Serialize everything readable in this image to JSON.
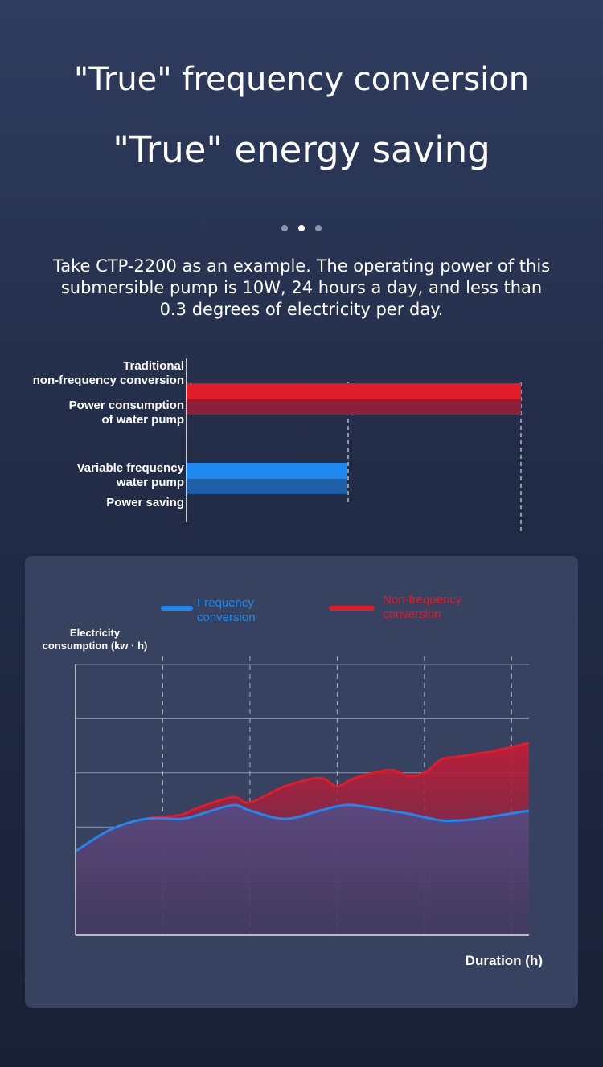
{
  "header": {
    "title_line1": "\"True\" frequency conversion",
    "title_line2": "\"True\" energy saving"
  },
  "pagination": {
    "count": 3,
    "active_index": 1
  },
  "description": "Take CTP-2200 as an example. The operating power of this submersible pump is 10W, 24 hours a day, and less than 0.3 degrees of electricity per day.",
  "colors": {
    "red": "#e01c28",
    "red_dark": "#8c1f3a",
    "blue": "#1e88f0",
    "blue_dark": "#1f5fa8"
  },
  "chart_data": [
    {
      "type": "bar",
      "orientation": "horizontal",
      "categories": [
        {
          "name": "Traditional non-frequency conversion",
          "sublabel": "Power consumption of water pump",
          "value": 1.0
        },
        {
          "name": "Variable frequency water pump",
          "sublabel": "Power saving",
          "value": 0.48
        }
      ],
      "labels": {
        "cat0_line1": "Traditional",
        "cat0_line2": "non-frequency conversion",
        "cat0_sub1": "Power consumption",
        "cat0_sub2": "of water pump",
        "cat1_line1": "Variable frequency",
        "cat1_line2": "water pump",
        "cat1_sub1": "Power saving"
      }
    },
    {
      "type": "area",
      "legend": {
        "frequency_line1": "Frequency",
        "frequency_line2": "conversion",
        "nonfrequency_line1": "Non-frequency",
        "nonfrequency_line2": "conversion"
      },
      "ylabel_line1": "Electricity",
      "ylabel_line2": "consumption (kw · h)",
      "xlabel": "Duration (h)",
      "xlim": [
        0,
        26
      ],
      "ylim": [
        0,
        5
      ],
      "grid": true,
      "x": [
        0,
        2,
        4,
        6,
        7,
        9,
        10,
        12,
        14,
        15,
        16,
        18,
        19,
        20,
        21,
        22,
        23,
        24,
        26
      ],
      "series": [
        {
          "name": "Frequency conversion",
          "values": [
            1.55,
            1.95,
            2.15,
            2.15,
            2.22,
            2.4,
            2.3,
            2.15,
            2.3,
            2.38,
            2.4,
            2.3,
            2.25,
            2.18,
            2.12,
            2.12,
            2.15,
            2.2,
            2.3
          ]
        },
        {
          "name": "Non-frequency conversion",
          "values": [
            1.55,
            1.95,
            2.15,
            2.22,
            2.35,
            2.55,
            2.45,
            2.75,
            2.9,
            2.75,
            2.9,
            3.05,
            2.95,
            3.0,
            3.25,
            3.3,
            3.35,
            3.4,
            3.55
          ]
        }
      ]
    }
  ]
}
